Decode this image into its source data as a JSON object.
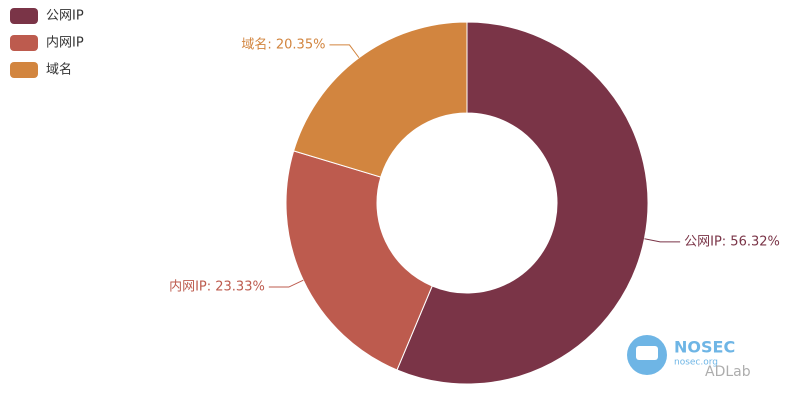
{
  "chart_data": {
    "type": "pie",
    "categories": [
      "公网IP",
      "内网IP",
      "域名"
    ],
    "values": [
      56.32,
      23.33,
      20.35
    ],
    "value_labels": [
      "公网IP: 56.32%",
      "内网IP: 23.33%",
      "域名: 20.35%"
    ],
    "colors": [
      "#7a3447",
      "#bd5b4e",
      "#d2853f"
    ],
    "legend": "top-left"
  },
  "watermark": {
    "brand": "NOSEC",
    "site": "nosec.org",
    "account": "ADLab"
  }
}
